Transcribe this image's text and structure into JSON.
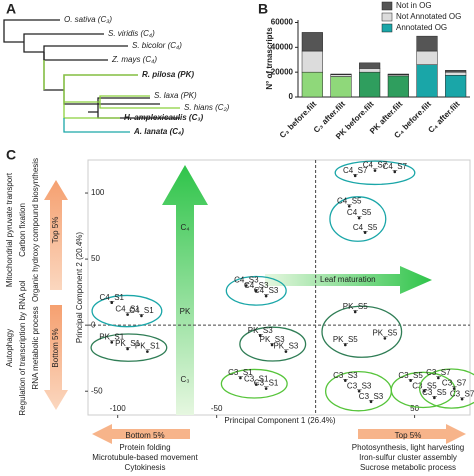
{
  "panels": {
    "a": "A",
    "b": "B",
    "c": "C"
  },
  "tree": {
    "taxa": [
      "O. sativa (C₃)",
      "S. viridis (C₄)",
      "S. bicolor (C₄)",
      "Z. mays (C₄)",
      "R. pilosa (PK)",
      "S. laxa (PK)",
      "S. hians (C₂)",
      "H. amplexicaulis (C₃)",
      "A. lanata (C₄)"
    ]
  },
  "chart_data": [
    {
      "type": "stacked-bar",
      "ylabel": "N° of trnascripts",
      "categories": [
        "C₃ before.filt",
        "C₃ after.filt",
        "PK before.filt",
        "PK after.filt",
        "C₄ before.filt",
        "C₄ after.filt"
      ],
      "series": [
        {
          "name": "Annotated OG",
          "color": "#1aa6a8",
          "colors": [
            "#8fd87a",
            "#8fd87a",
            "#2f9e5e",
            "#2f9e5e",
            "#1aa6a8",
            "#1aa6a8"
          ],
          "values": [
            20000,
            16500,
            20000,
            17000,
            26000,
            17500
          ]
        },
        {
          "name": "Not Annotated OG",
          "color": "#dcdcdc",
          "values": [
            17000,
            1500,
            3000,
            1000,
            11000,
            2500
          ]
        },
        {
          "name": "Not in OG",
          "color": "#555555",
          "values": [
            15000,
            500,
            4500,
            500,
            12000,
            1500
          ]
        }
      ],
      "ylim": [
        0,
        62000
      ],
      "yticks": [
        0,
        20000,
        40000,
        60000
      ]
    },
    {
      "type": "scatter",
      "xlabel": "Principal Component 1 (26.4%)",
      "ylabel": "Principal Component 2 (20.4%)",
      "xlim": [
        -115,
        78
      ],
      "ylim": [
        -68,
        125
      ],
      "xticks": [
        -100,
        -50,
        50
      ],
      "yticks": [
        -50,
        0,
        50,
        100
      ],
      "series": [
        {
          "name": "C4_S1",
          "color": "#1aa6a8",
          "x": [
            -103,
            -95,
            -88
          ],
          "y": [
            17,
            8,
            7
          ]
        },
        {
          "name": "C4_S3",
          "color": "#1aa6a8",
          "x": [
            -35,
            -30,
            -25
          ],
          "y": [
            30,
            26,
            22
          ]
        },
        {
          "name": "C4_S5",
          "color": "#1aa6a8",
          "x": [
            17,
            22,
            25
          ],
          "y": [
            90,
            81,
            70
          ]
        },
        {
          "name": "C4_S7",
          "color": "#1aa6a8",
          "x": [
            20,
            30,
            40
          ],
          "y": [
            113,
            117,
            116
          ]
        },
        {
          "name": "PK_S1",
          "color": "#2f7d55",
          "x": [
            -103,
            -95,
            -85
          ],
          "y": [
            -13,
            -18,
            -20
          ]
        },
        {
          "name": "PK_S3",
          "color": "#2f7d55",
          "x": [
            -28,
            -22,
            -15
          ],
          "y": [
            -8,
            -15,
            -20
          ]
        },
        {
          "name": "PK_S5",
          "color": "#2f7d55",
          "x": [
            20,
            15,
            35
          ],
          "y": [
            10,
            -15,
            -10
          ]
        },
        {
          "name": "C3_S1",
          "color": "#56c43a",
          "x": [
            -38,
            -30,
            -25
          ],
          "y": [
            -40,
            -45,
            -48
          ]
        },
        {
          "name": "C3_S3",
          "color": "#56c43a",
          "x": [
            15,
            22,
            28
          ],
          "y": [
            -42,
            -50,
            -58
          ]
        },
        {
          "name": "C3_S5",
          "color": "#56c43a",
          "x": [
            48,
            55,
            60
          ],
          "y": [
            -42,
            -50,
            -55
          ]
        },
        {
          "name": "C3_S7",
          "color": "#56c43a",
          "x": [
            62,
            70,
            74
          ],
          "y": [
            -40,
            -48,
            -56
          ]
        }
      ],
      "annotations": {
        "c4": "C₄",
        "pk": "PK",
        "c3": "C₃",
        "maturation": "Leaf maturation",
        "left_top": {
          "head": "Top 5%",
          "terms": [
            "Mitochondrial pyruvate transport",
            "Carbon fixation",
            "Organic hydroxy compound biosynthesis"
          ]
        },
        "left_bottom": {
          "head": "Bottom 5%",
          "terms": [
            "Autophagy",
            "Regulation of transcription by RNA pol",
            "RNA metabolic process"
          ]
        },
        "bottom_left": {
          "head": "Bottom 5%",
          "terms": [
            "Protein folding",
            "Microtubule-based movement",
            "Cytokinesis"
          ]
        },
        "bottom_right": {
          "head": "Top 5%",
          "terms": [
            "Photosynthesis, light harvesting",
            "Iron-sulfur cluster assembly",
            "Sucrose metabolic process"
          ]
        }
      }
    }
  ]
}
